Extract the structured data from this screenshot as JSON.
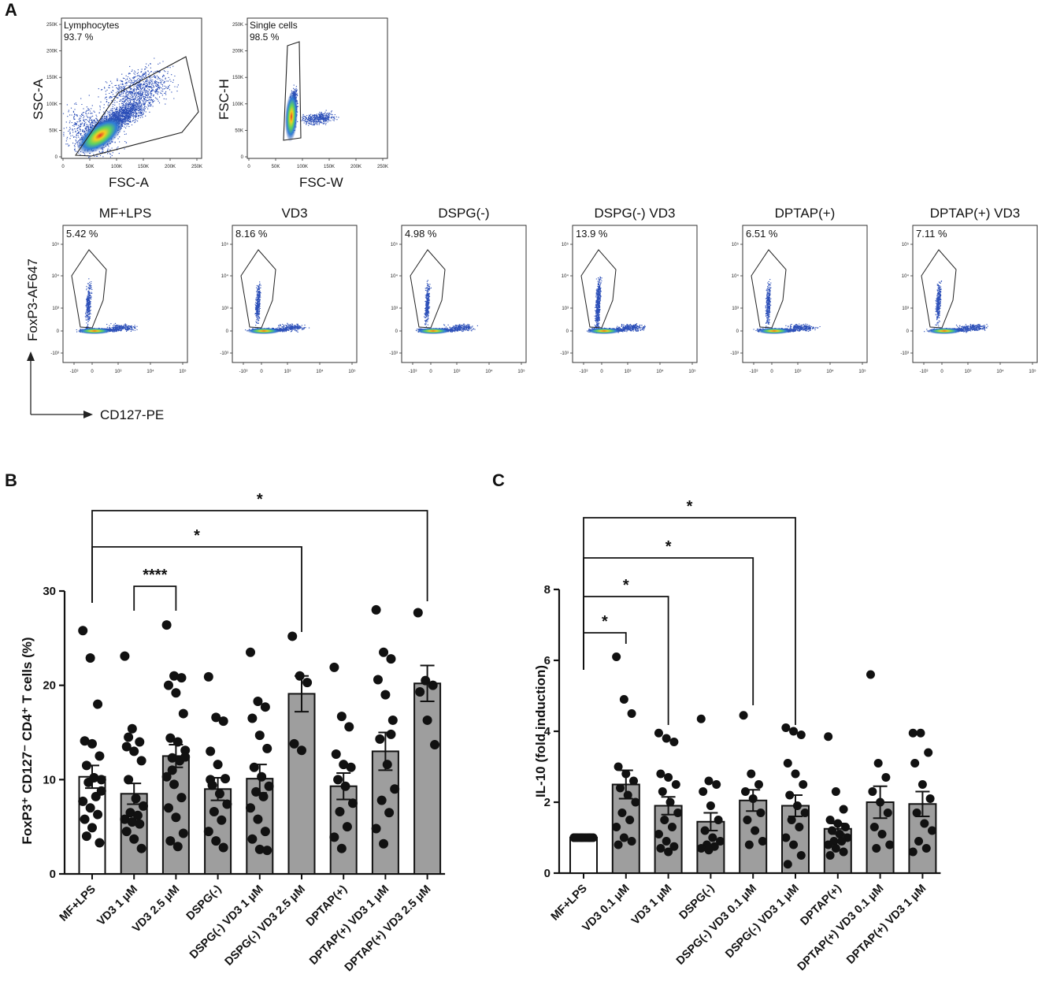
{
  "panels": {
    "a": "A",
    "b": "B",
    "c": "C"
  },
  "gating": {
    "lymph": {
      "gate": "Lymphocytes",
      "pct": "93.7 %",
      "xlabel": "FSC-A",
      "ylabel": "SSC-A",
      "ticks_x": [
        "0",
        "50K",
        "100K",
        "150K",
        "200K",
        "250K"
      ],
      "ticks_y": [
        "0",
        "50K",
        "100K",
        "150K",
        "200K",
        "250K"
      ]
    },
    "single": {
      "gate": "Single cells",
      "pct": "98.5 %",
      "xlabel": "FSC-W",
      "ylabel": "FSC-H",
      "ticks_x": [
        "0",
        "50K",
        "100K",
        "150K",
        "200K",
        "250K"
      ],
      "ticks_y": [
        "0",
        "50K",
        "100K",
        "150K",
        "200K",
        "250K"
      ]
    }
  },
  "treg_plots": {
    "ylabel": "FoxP3-AF647",
    "xlabel": "CD127-PE",
    "titles": [
      "MF+LPS",
      "VD3",
      "DSPG(-)",
      "DSPG(-) VD3",
      "DPTAP(+)",
      "DPTAP(+) VD3"
    ],
    "pcts": [
      "5.42 %",
      "8.16 %",
      "4.98 %",
      "13.9 %",
      "6.51 %",
      "7.11 %"
    ],
    "ticks_y": [
      "10⁵",
      "10⁴",
      "10³",
      "0",
      "-10³"
    ],
    "ticks_x": [
      "-10³",
      "0",
      "10³",
      "10⁴",
      "10⁵"
    ]
  },
  "chart_data": [
    {
      "type": "bar",
      "panel": "B",
      "ylabel": "FoxP3⁺ CD127⁻ CD4⁺ T cells (%)",
      "ylim": [
        0,
        30
      ],
      "yticks": [
        "0",
        "10",
        "20",
        "30"
      ],
      "categories": [
        "MF+LPS",
        "VD3 1 μM",
        "VD3 2.5 μM",
        "DSPG(-)",
        "DSPG(-) VD3 1 μM",
        "DSPG(-) VD3 2.5 μM",
        "DPTAP(+)",
        "DPTAP(+) VD3 1 μM",
        "DPTAP(+) VD3 2.5 μM"
      ],
      "means": [
        10.3,
        8.5,
        12.5,
        9.0,
        10.1,
        19.1,
        9.3,
        13.0,
        20.2
      ],
      "sems": [
        1.2,
        1.1,
        1.2,
        1.2,
        1.5,
        1.9,
        1.4,
        2.0,
        1.9
      ],
      "points": [
        [
          25.8,
          22.9,
          18.0,
          14.1,
          13.8,
          12.5,
          11.5,
          10.2,
          10.0,
          9.7,
          8.2,
          7.7,
          7.0,
          6.3,
          5.8,
          4.9,
          3.3,
          4.0,
          10.2,
          8.8
        ],
        [
          23.1,
          15.4,
          14.0,
          13.5,
          13.0,
          12.0,
          10.0,
          8.0,
          7.2,
          6.5,
          6.2,
          5.8,
          5.5,
          5.3,
          4.5,
          3.7,
          2.7,
          14.5
        ],
        [
          26.4,
          21.0,
          20.8,
          20.0,
          19.2,
          17.0,
          14.4,
          14.0,
          13.1,
          12.3,
          12.0,
          10.3,
          9.5,
          8.1,
          7.0,
          6.0,
          4.3,
          3.5,
          2.9,
          12.4,
          11.0
        ],
        [
          20.9,
          16.6,
          16.2,
          13.0,
          11.6,
          10.1,
          9.4,
          8.5,
          7.4,
          6.6,
          5.7,
          4.5,
          3.5,
          2.8,
          10.0
        ],
        [
          23.5,
          18.3,
          17.7,
          16.5,
          14.7,
          13.3,
          11.3,
          10.3,
          9.3,
          8.7,
          8.2,
          7.0,
          5.8,
          4.5,
          3.7,
          2.6,
          2.5
        ],
        [
          25.2,
          21.0,
          20.3,
          13.8,
          13.1
        ],
        [
          21.9,
          16.7,
          15.6,
          12.7,
          11.6,
          11.3,
          10.0,
          9.3,
          7.5,
          6.6,
          5.0,
          3.9,
          2.7
        ],
        [
          28.0,
          23.5,
          22.8,
          20.6,
          19.0,
          16.3,
          14.3,
          11.6,
          9.0,
          7.8,
          6.5,
          4.8,
          3.2,
          14.8
        ],
        [
          27.7,
          20.5,
          20.0,
          19.3,
          16.3,
          13.7
        ]
      ],
      "fills": [
        "#ffffff",
        "#9e9e9e",
        "#9e9e9e",
        "#9e9e9e",
        "#9e9e9e",
        "#9e9e9e",
        "#9e9e9e",
        "#9e9e9e",
        "#9e9e9e"
      ],
      "brackets": [
        {
          "from": 1,
          "to": 2,
          "label": "****"
        },
        {
          "from": 0,
          "to": 5,
          "label": "*"
        },
        {
          "from": 0,
          "to": 8,
          "label": "*"
        }
      ]
    },
    {
      "type": "bar",
      "panel": "C",
      "ylabel": "IL-10 (fold induction)",
      "ylim": [
        0,
        8
      ],
      "yticks": [
        "0",
        "2",
        "4",
        "6",
        "8"
      ],
      "categories": [
        "MF+LPS",
        "VD3 0.1 μM",
        "VD3 1 μM",
        "DSPG(-)",
        "DSPG(-) VD3 0.1 μM",
        "DSPG(-) VD3 1 μM",
        "DPTAP(+)",
        "DPTAP(+) VD3 0.1 μM",
        "DPTAP(+) VD3 1 μM"
      ],
      "means": [
        1.0,
        2.5,
        1.9,
        1.45,
        2.05,
        1.9,
        1.25,
        2.0,
        1.95
      ],
      "sems": [
        0.0,
        0.4,
        0.25,
        0.25,
        0.3,
        0.3,
        0.15,
        0.45,
        0.35
      ],
      "points": [
        [
          1.0,
          1.0,
          1.0,
          1.0,
          1.0,
          1.0,
          1.0,
          1.0,
          1.0,
          1.0,
          1.0,
          1.0,
          1.0,
          1.0,
          1.0
        ],
        [
          6.1,
          4.9,
          4.5,
          3.0,
          2.8,
          2.6,
          2.4,
          2.2,
          2.0,
          1.7,
          1.5,
          1.3,
          1.0,
          0.9,
          0.8
        ],
        [
          3.95,
          3.8,
          3.7,
          2.8,
          2.7,
          2.5,
          2.3,
          2.0,
          1.7,
          1.5,
          1.3,
          1.1,
          0.9,
          0.75,
          0.7,
          0.6
        ],
        [
          4.35,
          2.6,
          2.5,
          2.3,
          1.9,
          1.5,
          1.2,
          1.0,
          0.9,
          0.8,
          0.75,
          0.7,
          0.65
        ],
        [
          4.45,
          2.8,
          2.5,
          2.3,
          2.1,
          1.7,
          1.5,
          1.2,
          0.9,
          0.8
        ],
        [
          4.1,
          4.0,
          3.9,
          3.1,
          2.8,
          2.5,
          2.2,
          1.9,
          1.7,
          1.5,
          1.3,
          1.0,
          0.8,
          0.5,
          0.25
        ],
        [
          3.85,
          2.3,
          1.8,
          1.5,
          1.4,
          1.3,
          1.2,
          1.1,
          1.0,
          0.9,
          0.9,
          0.8,
          0.7,
          0.6,
          0.5
        ],
        [
          5.6,
          3.1,
          2.7,
          2.3,
          2.0,
          1.7,
          1.3,
          1.1,
          0.8,
          0.7
        ],
        [
          3.95,
          3.95,
          3.4,
          3.1,
          2.5,
          2.1,
          1.7,
          1.4,
          1.2,
          0.9,
          0.7,
          0.6
        ]
      ],
      "fills": [
        "#ffffff",
        "#9e9e9e",
        "#9e9e9e",
        "#9e9e9e",
        "#9e9e9e",
        "#9e9e9e",
        "#9e9e9e",
        "#9e9e9e",
        "#9e9e9e"
      ],
      "brackets": [
        {
          "from": 0,
          "to": 1,
          "label": "*"
        },
        {
          "from": 0,
          "to": 2,
          "label": "*"
        },
        {
          "from": 0,
          "to": 4,
          "label": "*"
        },
        {
          "from": 0,
          "to": 5,
          "label": "*"
        }
      ]
    }
  ]
}
